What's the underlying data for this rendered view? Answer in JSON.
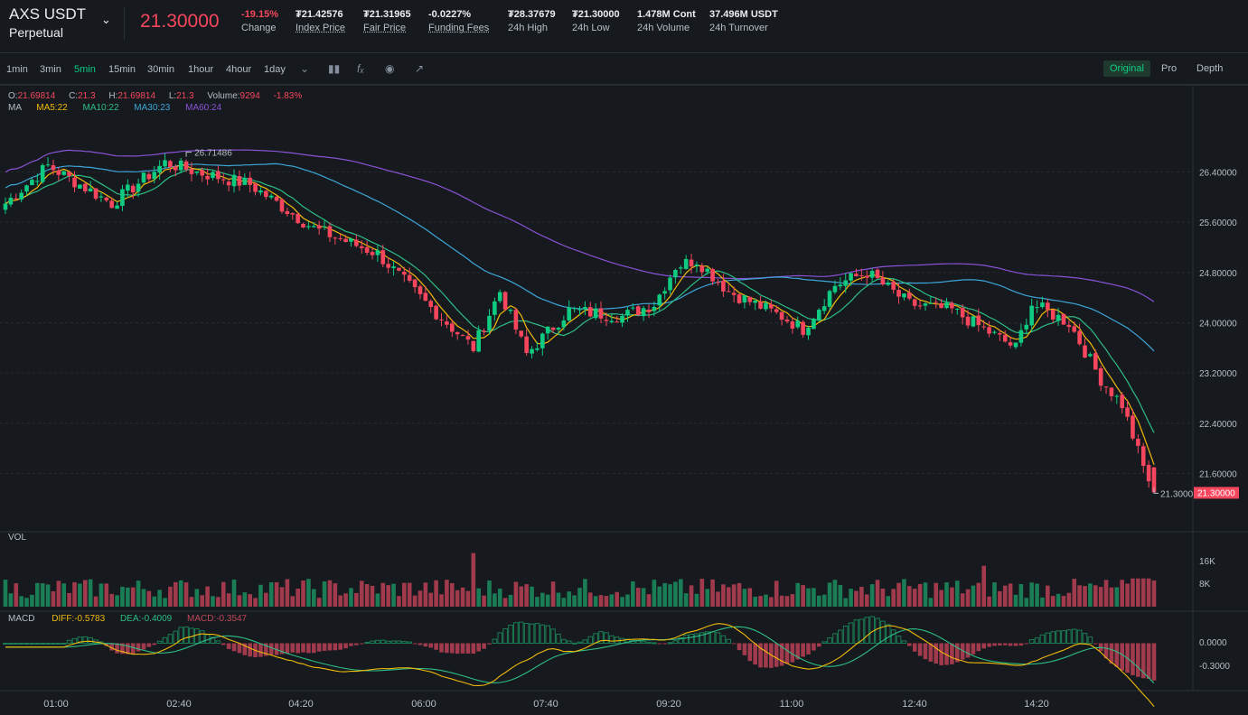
{
  "header": {
    "symbol": "AXS USDT",
    "contract_type": "Perpetual",
    "last_price": "21.30000",
    "stats": [
      {
        "value": "-19.15%",
        "label": "Change",
        "color": "#f6465d",
        "underline": false
      },
      {
        "value": "₮21.42576",
        "label": "Index Price",
        "underline": true
      },
      {
        "value": "₮21.31965",
        "label": "Fair Price",
        "underline": true
      },
      {
        "value": "-0.0227%",
        "label": "Funding Fees",
        "underline": true
      },
      {
        "value": "₮28.37679",
        "label": "24h High",
        "underline": false
      },
      {
        "value": "₮21.30000",
        "label": "24h Low",
        "underline": false
      },
      {
        "value": "1.478M Cont",
        "label": "24h Volume",
        "underline": false
      },
      {
        "value": "37.496M USDT",
        "label": "24h Turnover",
        "underline": false
      }
    ]
  },
  "toolbar": {
    "timeframes": [
      "1min",
      "3min",
      "5min",
      "15min",
      "30min",
      "1hour",
      "4hour",
      "1day"
    ],
    "active_timeframe": "5min",
    "views": [
      "Original",
      "Pro",
      "Depth"
    ],
    "active_view": "Original"
  },
  "ohlc": {
    "open_label": "O:",
    "open": "21.69814",
    "close_label": "C:",
    "close": "21.3",
    "high_label": "H:",
    "high": "21.69814",
    "low_label": "L:",
    "low": "21.3",
    "volume_label": "Volume:",
    "volume": "9294",
    "change": "-1.83%"
  },
  "ma_legend": {
    "title": "MA",
    "ma5": "MA5:22",
    "ma10": "MA10:22",
    "ma30": "MA30:23",
    "ma60": "MA60:24"
  },
  "vol_legend": {
    "title": "VOL"
  },
  "macd_legend": {
    "title": "MACD",
    "diff": "DIFF:-0.5783",
    "dea": "DEA:-0.4009",
    "macd": "MACD:-0.3547"
  },
  "price_axis": [
    "26.40000",
    "25.60000",
    "24.80000",
    "24.00000",
    "23.20000",
    "22.40000",
    "21.60000"
  ],
  "current_price_tag": "21.30000",
  "current_price_label": "21.3000",
  "high_marker": "26.71486",
  "volume_axis": [
    "16K",
    "8K"
  ],
  "macd_axis": [
    "0.0000",
    "-0.3000"
  ],
  "time_axis": [
    "01:00",
    "02:40",
    "04:20",
    "06:00",
    "07:40",
    "09:20",
    "11:00",
    "12:40",
    "14:20"
  ],
  "colors": {
    "up": "#0ecb81",
    "down": "#f6465d",
    "ma5": "#f0b90b",
    "ma10": "#2ebd85",
    "ma30": "#3ea6d8",
    "ma60": "#8a53d6",
    "macd_diff": "#f0b90b",
    "macd_dea": "#2ebd85"
  },
  "chart_data": {
    "type": "candlestick",
    "interval": "5min",
    "close_anchors": [
      [
        0,
        25.9
      ],
      [
        8,
        26.5
      ],
      [
        14,
        26.2
      ],
      [
        20,
        25.9
      ],
      [
        30,
        26.55
      ],
      [
        36,
        26.4
      ],
      [
        46,
        26.2
      ],
      [
        58,
        25.5
      ],
      [
        70,
        25.1
      ],
      [
        78,
        24.4
      ],
      [
        88,
        23.6
      ],
      [
        93,
        24.5
      ],
      [
        98,
        23.5
      ],
      [
        106,
        24.2
      ],
      [
        116,
        24.1
      ],
      [
        122,
        24.3
      ],
      [
        126,
        24.9
      ],
      [
        130,
        25.0
      ],
      [
        136,
        24.5
      ],
      [
        146,
        24.1
      ],
      [
        150,
        23.9
      ],
      [
        156,
        24.6
      ],
      [
        162,
        24.8
      ],
      [
        170,
        24.3
      ],
      [
        178,
        24.2
      ],
      [
        184,
        23.9
      ],
      [
        190,
        23.6
      ],
      [
        193,
        24.3
      ],
      [
        200,
        24.0
      ],
      [
        206,
        23.1
      ],
      [
        210,
        22.7
      ],
      [
        214,
        21.7
      ],
      [
        216,
        21.3
      ]
    ],
    "high": 26.71486,
    "last_close": 21.3,
    "volume_range": [
      0,
      20000
    ],
    "macd_range": [
      -0.75,
      0.25
    ],
    "last_candle": {
      "open": 21.69814,
      "high": 21.69814,
      "low": 21.3,
      "close": 21.3,
      "volume": 9294
    }
  }
}
